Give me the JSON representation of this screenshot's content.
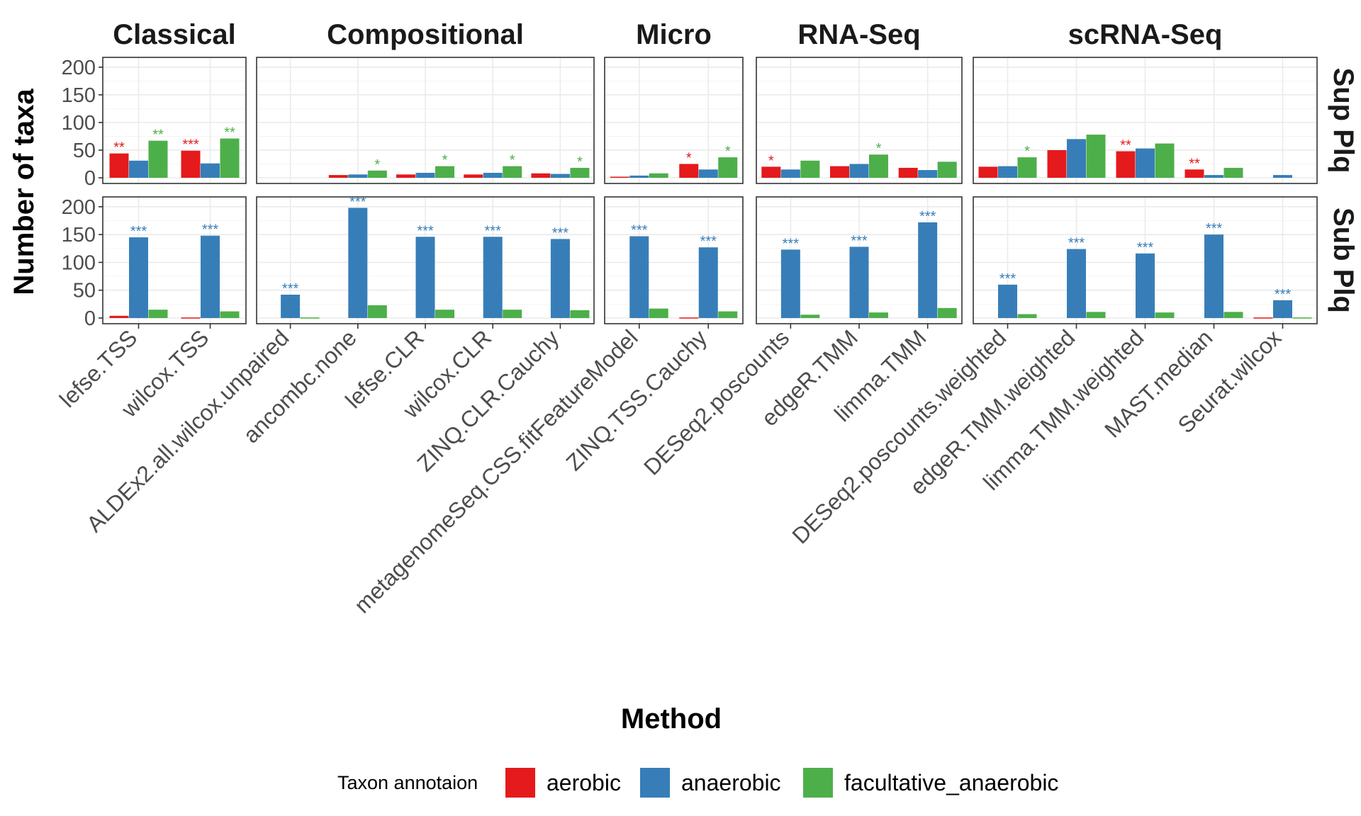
{
  "chart_data": {
    "type": "bar",
    "ylabel": "Number of taxa",
    "xlabel": "Method",
    "ylim": [
      0,
      210
    ],
    "yticks": [
      0,
      50,
      100,
      150,
      200
    ],
    "grid": true,
    "legend": {
      "title": "Taxon annotaion",
      "position": "bottom",
      "entries": [
        "aerobic",
        "anaerobic",
        "facultative_anaerobic"
      ]
    },
    "series_colors": {
      "aerobic": "#E41A1C",
      "anaerobic": "#377EB8",
      "facultative_anaerobic": "#4DAF4A"
    },
    "rows": [
      "Sup Plq",
      "Sub Plq"
    ],
    "panels": [
      {
        "facet": "Classical",
        "methods": [
          "lefse.TSS",
          "wilcox.TSS"
        ],
        "values": {
          "Sup Plq": {
            "aerobic": [
              44,
              49
            ],
            "anaerobic": [
              31,
              26
            ],
            "facultative_anaerobic": [
              67,
              71
            ],
            "sig": {
              "aerobic": [
                "**",
                "***"
              ],
              "anaerobic": [
                "",
                ""
              ],
              "facultative_anaerobic": [
                "**",
                "**"
              ]
            }
          },
          "Sub Plq": {
            "aerobic": [
              4,
              1
            ],
            "anaerobic": [
              145,
              148
            ],
            "facultative_anaerobic": [
              15,
              12
            ],
            "sig": {
              "aerobic": [
                "",
                ""
              ],
              "anaerobic": [
                "***",
                "***"
              ],
              "facultative_anaerobic": [
                "",
                ""
              ]
            }
          }
        }
      },
      {
        "facet": "Compositional",
        "methods": [
          "ALDEx2.all.wilcox.unpaired",
          "ancombc.none",
          "lefse.CLR",
          "wilcox.CLR",
          "ZINQ.CLR.Cauchy"
        ],
        "values": {
          "Sup Plq": {
            "aerobic": [
              0,
              5,
              6,
              6,
              8
            ],
            "anaerobic": [
              0,
              6,
              9,
              9,
              7
            ],
            "facultative_anaerobic": [
              0,
              13,
              21,
              21,
              18
            ],
            "sig": {
              "aerobic": [
                "",
                "",
                "",
                "",
                ""
              ],
              "anaerobic": [
                "",
                "",
                "",
                "",
                ""
              ],
              "facultative_anaerobic": [
                "",
                "*",
                "*",
                "*",
                "*"
              ]
            }
          },
          "Sub Plq": {
            "aerobic": [
              0,
              0,
              0,
              0,
              0
            ],
            "anaerobic": [
              42,
              198,
              146,
              146,
              142
            ],
            "facultative_anaerobic": [
              1,
              23,
              15,
              15,
              14
            ],
            "sig": {
              "aerobic": [
                "",
                "",
                "",
                "",
                ""
              ],
              "anaerobic": [
                "***",
                "***",
                "***",
                "***",
                "***"
              ],
              "facultative_anaerobic": [
                "",
                "",
                "",
                "",
                ""
              ]
            }
          }
        }
      },
      {
        "facet": "Micro",
        "methods": [
          "metagenomeSeq.CSS.fitFeatureModel",
          "ZINQ.TSS.Cauchy"
        ],
        "values": {
          "Sup Plq": {
            "aerobic": [
              2,
              25
            ],
            "anaerobic": [
              4,
              15
            ],
            "facultative_anaerobic": [
              8,
              37
            ],
            "sig": {
              "aerobic": [
                "",
                "*"
              ],
              "anaerobic": [
                "",
                ""
              ],
              "facultative_anaerobic": [
                "",
                "*"
              ]
            }
          },
          "Sub Plq": {
            "aerobic": [
              0,
              1
            ],
            "anaerobic": [
              147,
              127
            ],
            "facultative_anaerobic": [
              17,
              12
            ],
            "sig": {
              "aerobic": [
                "",
                ""
              ],
              "anaerobic": [
                "***",
                "***"
              ],
              "facultative_anaerobic": [
                "",
                ""
              ]
            }
          }
        }
      },
      {
        "facet": "RNA-Seq",
        "methods": [
          "DESeq2.poscounts",
          "edgeR.TMM",
          "limma.TMM"
        ],
        "values": {
          "Sup Plq": {
            "aerobic": [
              20,
              21,
              18
            ],
            "anaerobic": [
              15,
              25,
              14
            ],
            "facultative_anaerobic": [
              31,
              42,
              29
            ],
            "sig": {
              "aerobic": [
                "*",
                "",
                ""
              ],
              "anaerobic": [
                "",
                "",
                ""
              ],
              "facultative_anaerobic": [
                "",
                "*",
                ""
              ]
            }
          },
          "Sub Plq": {
            "aerobic": [
              0,
              0,
              0
            ],
            "anaerobic": [
              123,
              128,
              172
            ],
            "facultative_anaerobic": [
              6,
              10,
              18
            ],
            "sig": {
              "aerobic": [
                "",
                "",
                ""
              ],
              "anaerobic": [
                "***",
                "***",
                "***"
              ],
              "facultative_anaerobic": [
                "",
                "",
                ""
              ]
            }
          }
        }
      },
      {
        "facet": "scRNA-Seq",
        "methods": [
          "DESeq2.poscounts.weighted",
          "edgeR.TMM.weighted",
          "limma.TMM.weighted",
          "MAST.median",
          "Seurat.wilcox"
        ],
        "values": {
          "Sup Plq": {
            "aerobic": [
              20,
              50,
              48,
              15,
              0
            ],
            "anaerobic": [
              21,
              70,
              53,
              5,
              5
            ],
            "facultative_anaerobic": [
              37,
              78,
              62,
              18,
              0
            ],
            "sig": {
              "aerobic": [
                "",
                "",
                "**",
                "**",
                ""
              ],
              "anaerobic": [
                "",
                "",
                "",
                "",
                ""
              ],
              "facultative_anaerobic": [
                "*",
                "",
                "",
                "",
                ""
              ]
            }
          },
          "Sub Plq": {
            "aerobic": [
              0,
              0,
              0,
              0,
              1
            ],
            "anaerobic": [
              60,
              124,
              116,
              150,
              32
            ],
            "facultative_anaerobic": [
              7,
              11,
              10,
              11,
              1
            ],
            "sig": {
              "aerobic": [
                "",
                "",
                "",
                "",
                ""
              ],
              "anaerobic": [
                "***",
                "***",
                "***",
                "***",
                "***"
              ],
              "facultative_anaerobic": [
                "",
                "",
                "",
                "",
                ""
              ]
            }
          }
        }
      }
    ]
  }
}
